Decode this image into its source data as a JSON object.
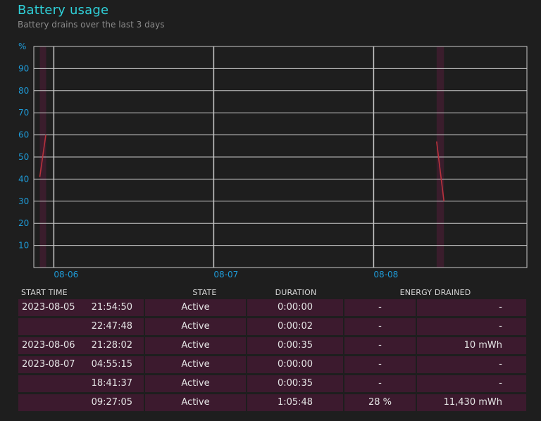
{
  "header": {
    "title": "Battery usage",
    "subtitle": "Battery drains over the last 3 days"
  },
  "colors": {
    "accent": "#2fd0d8",
    "axis_label": "#1e9ad6",
    "grid": "#c8c8c8",
    "drain_line": "#b8323c",
    "drain_band": "#3a1d2c",
    "row_bg": "#3c1a2e"
  },
  "chart_data": {
    "type": "line",
    "ylabel": "%",
    "ylim": [
      0,
      100
    ],
    "yticks": [
      10,
      20,
      30,
      40,
      50,
      60,
      70,
      80,
      90
    ],
    "xlim": [
      "2023-08-05 21:00",
      "2023-08-08 23:00"
    ],
    "xticks": [
      {
        "label": "08-06",
        "at": "2023-08-06 00:00"
      },
      {
        "label": "08-07",
        "at": "2023-08-07 00:00"
      },
      {
        "label": "08-08",
        "at": "2023-08-08 00:00"
      }
    ],
    "grid": true,
    "drain_bands": [
      {
        "start": "2023-08-05 21:54",
        "end": "2023-08-05 22:48"
      },
      {
        "start": "2023-08-08 09:27",
        "end": "2023-08-08 10:33"
      }
    ],
    "series": [
      {
        "points": [
          {
            "x": "2023-08-05 21:54",
            "y": 41
          },
          {
            "x": "2023-08-05 22:48",
            "y": 60
          }
        ]
      },
      {
        "points": [
          {
            "x": "2023-08-08 09:27",
            "y": 57
          },
          {
            "x": "2023-08-08 10:33",
            "y": 30
          }
        ]
      }
    ]
  },
  "table": {
    "headers": {
      "start_time": "START TIME",
      "state": "STATE",
      "duration": "DURATION",
      "energy": "ENERGY DRAINED"
    },
    "rows": [
      {
        "date": "2023-08-05",
        "time": "21:54:50",
        "state": "Active",
        "duration": "0:00:00",
        "percent": "-",
        "energy": "-"
      },
      {
        "date": "",
        "time": "22:47:48",
        "state": "Active",
        "duration": "0:00:02",
        "percent": "-",
        "energy": "-"
      },
      {
        "date": "2023-08-06",
        "time": "21:28:02",
        "state": "Active",
        "duration": "0:00:35",
        "percent": "-",
        "energy": "10 mWh"
      },
      {
        "date": "2023-08-07",
        "time": "04:55:15",
        "state": "Active",
        "duration": "0:00:00",
        "percent": "-",
        "energy": "-"
      },
      {
        "date": "",
        "time": "18:41:37",
        "state": "Active",
        "duration": "0:00:35",
        "percent": "-",
        "energy": "-"
      },
      {
        "date": "",
        "time": "09:27:05",
        "state": "Active",
        "duration": "1:05:48",
        "percent": "28 %",
        "energy": "11,430 mWh"
      }
    ]
  }
}
